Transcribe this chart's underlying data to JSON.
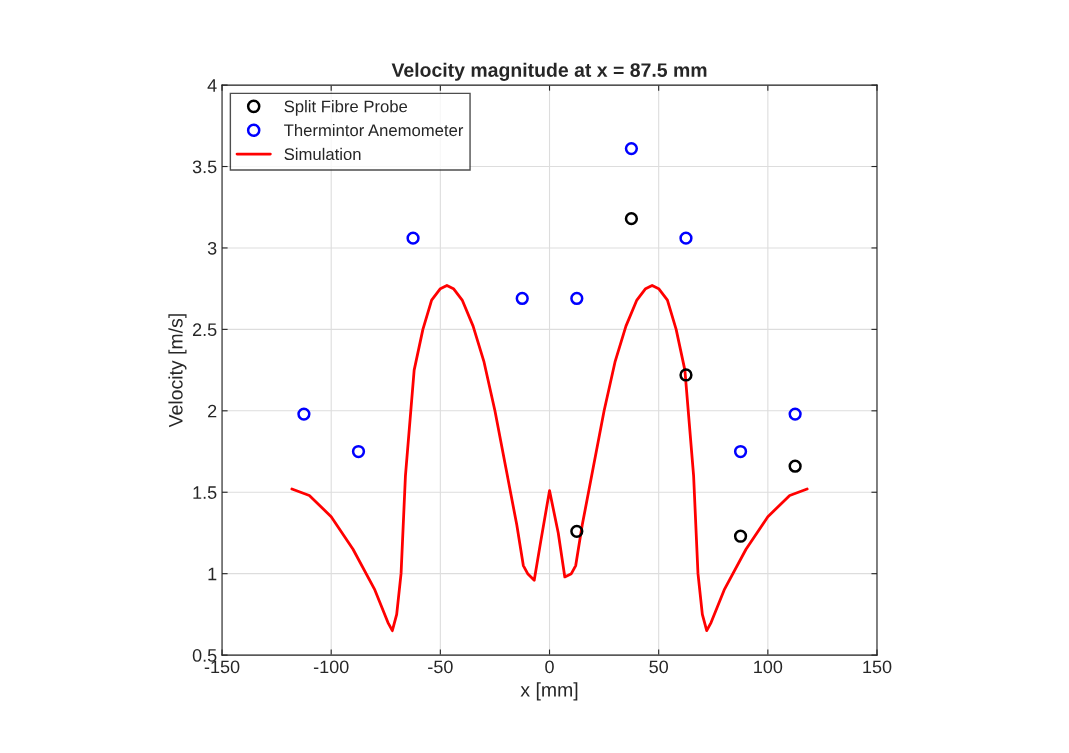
{
  "chart_data": {
    "type": "scatter",
    "title": "Velocity magnitude at x = 87.5 mm",
    "xlabel": "x [mm]",
    "ylabel": "Velocity [m/s]",
    "xlim": [
      -150,
      150
    ],
    "xticks": [
      -150,
      -100,
      -50,
      0,
      50,
      100,
      150
    ],
    "ylim": [
      0.5,
      4
    ],
    "yticks": [
      0.5,
      1,
      1.5,
      2,
      2.5,
      3,
      3.5,
      4
    ],
    "grid": true,
    "legend": "top left",
    "marker": "circle",
    "series": [
      {
        "name": "Split Fibre Probe",
        "color": "#000000",
        "x": [
          12.5,
          37.5,
          62.5,
          87.5,
          112.5
        ],
        "values": [
          1.26,
          3.18,
          2.22,
          1.23,
          1.66
        ]
      },
      {
        "name": "Thermintor Anemometer",
        "color": "#0000ff",
        "x": [
          -112.5,
          -87.5,
          -62.5,
          -12.5,
          12.5,
          37.5,
          62.5,
          87.5,
          112.5
        ],
        "values": [
          1.98,
          1.75,
          3.06,
          2.69,
          2.69,
          3.61,
          3.06,
          1.75,
          1.98
        ]
      },
      {
        "name": "Simulation",
        "type": "line",
        "color": "#ff0000",
        "marker": "none",
        "x": [
          -118,
          -110,
          -100,
          -90,
          -80,
          -74,
          -72,
          -70,
          -68,
          -66,
          -62,
          -58,
          -54,
          -50,
          -47,
          -44,
          -40,
          -35,
          -30,
          -25,
          -20,
          -15,
          -12,
          -10,
          -7,
          -4,
          0,
          4,
          7,
          10,
          12,
          15,
          20,
          25,
          30,
          35,
          40,
          44,
          47,
          50,
          54,
          58,
          62,
          66,
          68,
          70,
          72,
          74,
          80,
          90,
          100,
          110,
          118
        ],
        "values": [
          1.52,
          1.48,
          1.35,
          1.15,
          0.9,
          0.7,
          0.65,
          0.75,
          1.0,
          1.6,
          2.25,
          2.5,
          2.68,
          2.75,
          2.77,
          2.75,
          2.68,
          2.52,
          2.3,
          2.0,
          1.65,
          1.3,
          1.05,
          1.0,
          0.96,
          1.2,
          1.51,
          1.25,
          0.98,
          1.0,
          1.05,
          1.3,
          1.65,
          2.0,
          2.3,
          2.52,
          2.68,
          2.75,
          2.77,
          2.75,
          2.68,
          2.5,
          2.25,
          1.6,
          1.0,
          0.75,
          0.65,
          0.7,
          0.9,
          1.15,
          1.35,
          1.48,
          1.52
        ]
      }
    ]
  }
}
